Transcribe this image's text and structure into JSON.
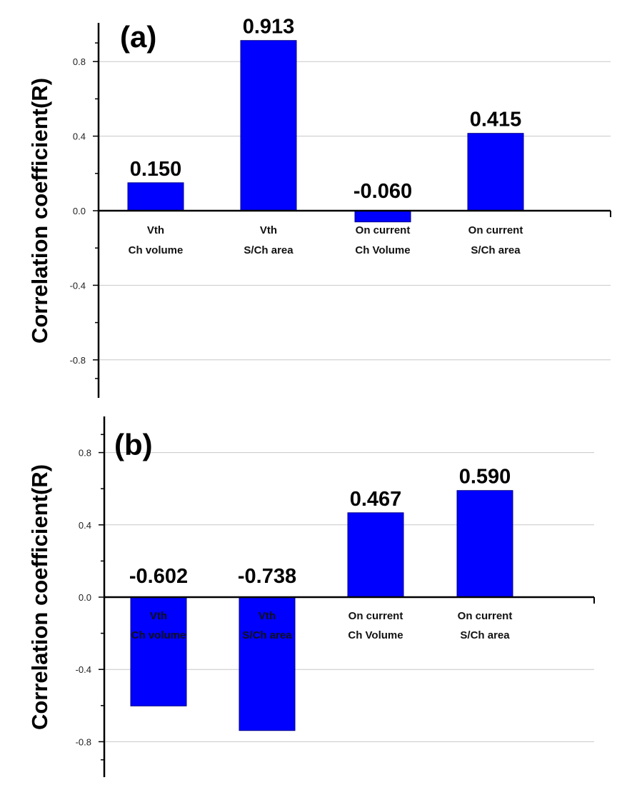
{
  "chart_data": [
    {
      "type": "bar",
      "panel_label": "(a)",
      "ylabel": "Correlation coefficient(R)",
      "xlabel": "",
      "ylim": [
        -1.0,
        1.0
      ],
      "yticks": [
        "0.8",
        "0.4",
        "0.0",
        "-0.4",
        "-0.8"
      ],
      "grid": true,
      "categories": [
        {
          "line1": "Vth",
          "line2": "Ch volume"
        },
        {
          "line1": "Vth",
          "line2": "S/Ch area"
        },
        {
          "line1": "On current",
          "line2": "Ch Volume"
        },
        {
          "line1": "On current",
          "line2": "S/Ch area"
        }
      ],
      "values": [
        0.15,
        0.913,
        -0.06,
        0.415
      ],
      "value_labels": [
        "0.150",
        "0.913",
        "-0.060",
        "0.415"
      ],
      "bar_color": "#0000ff"
    },
    {
      "type": "bar",
      "panel_label": "(b)",
      "ylabel": "Correlation coefficient(R)",
      "xlabel": "",
      "ylim": [
        -1.0,
        1.0
      ],
      "yticks": [
        "0.8",
        "0.4",
        "0.0",
        "-0.4",
        "-0.8"
      ],
      "grid": true,
      "categories": [
        {
          "line1": "Vth",
          "line2": "Ch volume"
        },
        {
          "line1": "Vth",
          "line2": "S/Ch area"
        },
        {
          "line1": "On current",
          "line2": "Ch Volume"
        },
        {
          "line1": "On current",
          "line2": "S/Ch area"
        }
      ],
      "values": [
        -0.602,
        -0.738,
        0.467,
        0.59
      ],
      "value_labels": [
        "-0.602",
        "-0.738",
        "0.467",
        "0.590"
      ],
      "bar_color": "#0000ff"
    }
  ]
}
